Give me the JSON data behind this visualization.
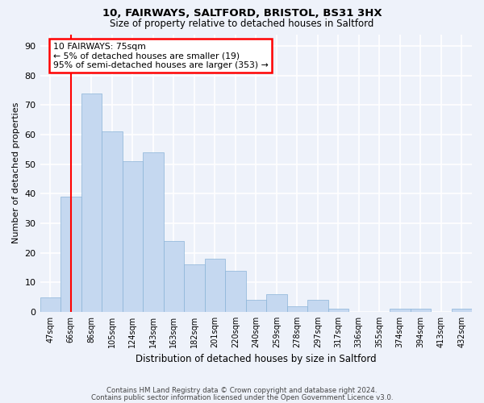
{
  "title_line1": "10, FAIRWAYS, SALTFORD, BRISTOL, BS31 3HX",
  "title_line2": "Size of property relative to detached houses in Saltford",
  "xlabel": "Distribution of detached houses by size in Saltford",
  "ylabel": "Number of detached properties",
  "categories": [
    "47sqm",
    "66sqm",
    "86sqm",
    "105sqm",
    "124sqm",
    "143sqm",
    "163sqm",
    "182sqm",
    "201sqm",
    "220sqm",
    "240sqm",
    "259sqm",
    "278sqm",
    "297sqm",
    "317sqm",
    "336sqm",
    "355sqm",
    "374sqm",
    "394sqm",
    "413sqm",
    "432sqm"
  ],
  "values": [
    5,
    39,
    74,
    61,
    51,
    54,
    24,
    16,
    18,
    14,
    4,
    6,
    2,
    4,
    1,
    0,
    0,
    1,
    1,
    0,
    1
  ],
  "bar_color": "#c5d8f0",
  "bar_edge_color": "#8ab4d8",
  "red_line_x": 1.0,
  "annotation_line1": "10 FAIRWAYS: 75sqm",
  "annotation_line2": "← 5% of detached houses are smaller (19)",
  "annotation_line3": "95% of semi-detached houses are larger (353) →",
  "box_color": "white",
  "box_edge_color": "red",
  "ylim": [
    0,
    94
  ],
  "yticks": [
    0,
    10,
    20,
    30,
    40,
    50,
    60,
    70,
    80,
    90
  ],
  "footer1": "Contains HM Land Registry data © Crown copyright and database right 2024.",
  "footer2": "Contains public sector information licensed under the Open Government Licence v3.0.",
  "background_color": "#eef2fa",
  "grid_color": "white"
}
